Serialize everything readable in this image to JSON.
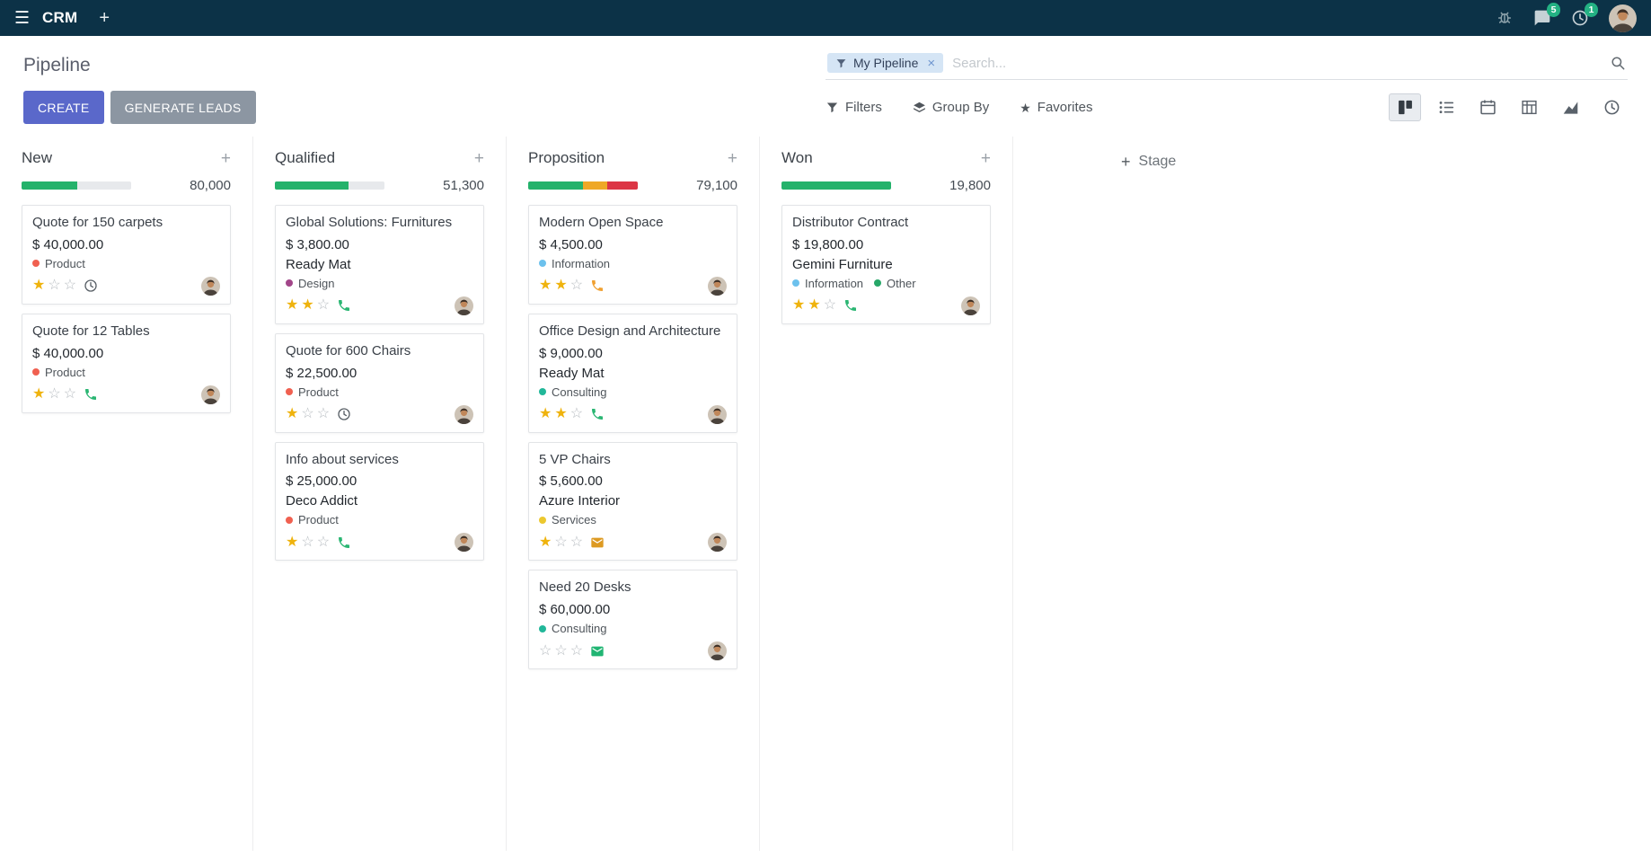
{
  "topbar": {
    "app_name": "CRM",
    "messages_badge": "5",
    "activities_badge": "1"
  },
  "control_panel": {
    "breadcrumb": "Pipeline",
    "buttons": {
      "create": "CREATE",
      "generate_leads": "GENERATE LEADS",
      "filters": "Filters",
      "group_by": "Group By",
      "favorites": "Favorites"
    },
    "search": {
      "facet": "My Pipeline",
      "placeholder": "Search..."
    },
    "view_switcher": {
      "active": "kanban",
      "views": [
        "kanban",
        "list",
        "calendar",
        "pivot",
        "graph",
        "activity"
      ]
    }
  },
  "board": {
    "add_stage_label": "Stage",
    "columns": [
      {
        "name": "New",
        "total": "80,000",
        "progress": [
          {
            "color": "#24b26b",
            "pct": 51
          }
        ],
        "cards": [
          {
            "title": "Quote for 150 carpets",
            "amount": "$ 40,000.00",
            "partner": "",
            "tags": [
              {
                "label": "Product",
                "color": "#f06050"
              }
            ],
            "stars": 1,
            "activity": {
              "icon": "clock-activity-icon",
              "color": "#585f66"
            }
          },
          {
            "title": "Quote for 12 Tables",
            "amount": "$ 40,000.00",
            "partner": "",
            "tags": [
              {
                "label": "Product",
                "color": "#f06050"
              }
            ],
            "stars": 1,
            "activity": {
              "icon": "phone-icon",
              "color": "#2bb673"
            }
          }
        ]
      },
      {
        "name": "Qualified",
        "total": "51,300",
        "progress": [
          {
            "color": "#24b26b",
            "pct": 67
          }
        ],
        "cards": [
          {
            "title": "Global Solutions: Furnitures",
            "amount": "$ 3,800.00",
            "partner": "Ready Mat",
            "tags": [
              {
                "label": "Design",
                "color": "#a24689"
              }
            ],
            "stars": 2,
            "activity": {
              "icon": "phone-icon",
              "color": "#2bb673"
            }
          },
          {
            "title": "Quote for 600 Chairs",
            "amount": "$ 22,500.00",
            "partner": "",
            "tags": [
              {
                "label": "Product",
                "color": "#f06050"
              }
            ],
            "stars": 1,
            "activity": {
              "icon": "clock-activity-icon",
              "color": "#585f66"
            }
          },
          {
            "title": "Info about services",
            "amount": "$ 25,000.00",
            "partner": "Deco Addict",
            "tags": [
              {
                "label": "Product",
                "color": "#f06050"
              }
            ],
            "stars": 1,
            "activity": {
              "icon": "phone-icon",
              "color": "#2bb673"
            }
          }
        ]
      },
      {
        "name": "Proposition",
        "total": "79,100",
        "progress": [
          {
            "color": "#24b26b",
            "pct": 50
          },
          {
            "color": "#efa826",
            "pct": 22
          },
          {
            "color": "#dc3545",
            "pct": 28
          }
        ],
        "cards": [
          {
            "title": "Modern Open Space",
            "amount": "$ 4,500.00",
            "partner": "",
            "tags": [
              {
                "label": "Information",
                "color": "#6cc1ed"
              }
            ],
            "stars": 2,
            "activity": {
              "icon": "phone-icon",
              "color": "#f0a132"
            }
          },
          {
            "title": "Office Design and Architecture",
            "amount": "$ 9,000.00",
            "partner": "Ready Mat",
            "tags": [
              {
                "label": "Consulting",
                "color": "#21b799"
              }
            ],
            "stars": 2,
            "activity": {
              "icon": "phone-icon",
              "color": "#2bb673"
            }
          },
          {
            "title": "5 VP Chairs",
            "amount": "$ 5,600.00",
            "partner": "Azure Interior",
            "tags": [
              {
                "label": "Services",
                "color": "#ecc82f"
              }
            ],
            "stars": 1,
            "activity": {
              "icon": "mail-icon",
              "color": "#dd9a22"
            }
          },
          {
            "title": "Need 20 Desks",
            "amount": "$ 60,000.00",
            "partner": "",
            "tags": [
              {
                "label": "Consulting",
                "color": "#21b799"
              }
            ],
            "stars": 0,
            "activity": {
              "icon": "mail-icon",
              "color": "#21b573"
            }
          }
        ]
      },
      {
        "name": "Won",
        "total": "19,800",
        "progress": [
          {
            "color": "#24b26b",
            "pct": 100
          }
        ],
        "cards": [
          {
            "title": "Distributor Contract",
            "amount": "$ 19,800.00",
            "partner": "Gemini Furniture",
            "tags": [
              {
                "label": "Information",
                "color": "#6cc1ed"
              },
              {
                "label": "Other",
                "color": "#27a768"
              }
            ],
            "stars": 2,
            "activity": {
              "icon": "phone-icon",
              "color": "#2bb673"
            }
          }
        ]
      }
    ]
  }
}
